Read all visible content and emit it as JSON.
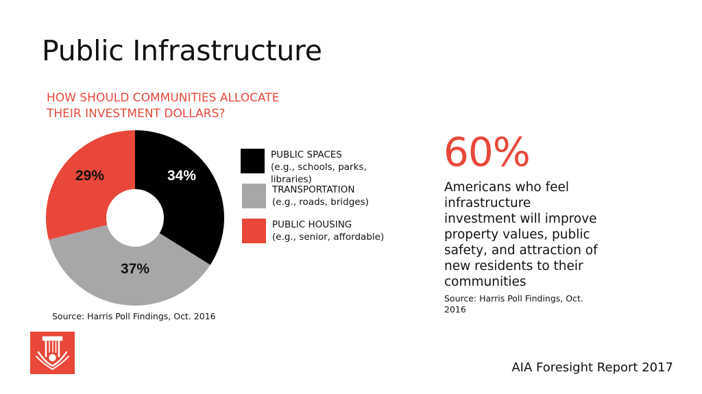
{
  "title": "Public Infrastructure",
  "subtitle_line1": "HOW SHOULD COMMUNITIES ALLOCATE",
  "subtitle_line2": "THEIR INVESTMENT DOLLARS?",
  "chart_data": {
    "type": "pie",
    "donut": true,
    "slices": [
      {
        "label": "PUBLIC SPACES",
        "value": 34,
        "display": "34%",
        "color": "#000000",
        "text_color": "#ffffff"
      },
      {
        "label": "TRANSPORTATION",
        "value": 37,
        "display": "37%",
        "color": "#a7a7a9",
        "text_color": "#111111"
      },
      {
        "label": "PUBLIC HOUSING",
        "value": 29,
        "display": "29%",
        "color": "#e8473a",
        "text_color": "#111111"
      }
    ],
    "legend": [
      {
        "line1": "PUBLIC SPACES",
        "line2": "(e.g., schools, parks,",
        "line3": "libraries)",
        "color": "#000000"
      },
      {
        "line1": "TRANSPORTATION",
        "line2": "(e.g., roads, bridges)",
        "line3": "",
        "color": "#a7a7a9"
      },
      {
        "line1": "PUBLIC HOUSING",
        "line2": "(e.g., senior, affordable)",
        "line3": "",
        "color": "#e8473a"
      }
    ],
    "legend_placement": "right",
    "source": "Source: Harris Poll Findings, Oct. 2016"
  },
  "stat": {
    "value": "60%",
    "description": "Americans who feel infrastructure investment will improve property values, public safety, and attraction of new residents to their communities",
    "source": "Source: Harris Poll Findings, Oct. 2016"
  },
  "logo_icon": "aia-eagle-column-logo",
  "footer": "AIA Foresight Report 2017",
  "colors": {
    "accent": "#e8473a",
    "gray": "#a7a7a9",
    "black": "#000000"
  }
}
